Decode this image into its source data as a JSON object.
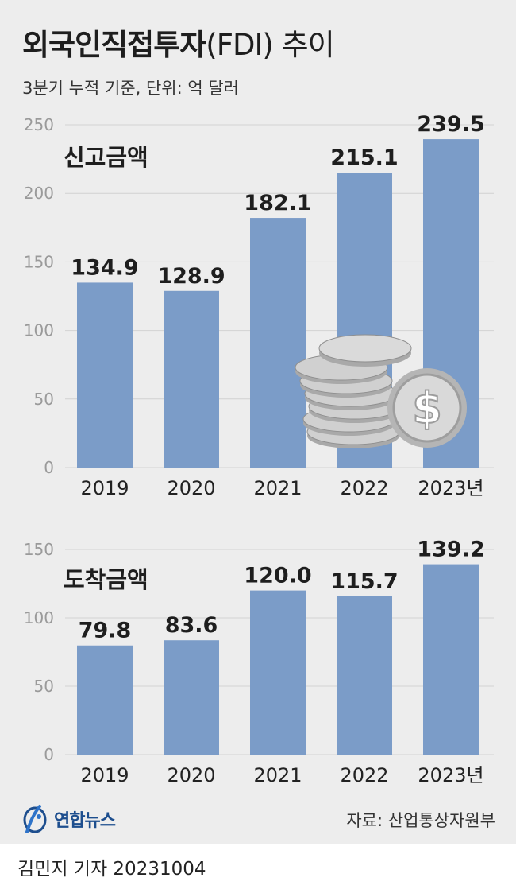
{
  "header": {
    "title_bold": "외국인직접투자",
    "title_light": "(FDI) 추이",
    "subtitle": "3분기 누적 기준, 단위: 억 달러"
  },
  "chart_data": [
    {
      "type": "bar",
      "title": "신고금액",
      "categories": [
        "2019",
        "2020",
        "2021",
        "2022",
        "2023년"
      ],
      "values": [
        134.9,
        128.9,
        182.1,
        215.1,
        239.5
      ],
      "value_labels": [
        "134.9",
        "128.9",
        "182.1",
        "215.1",
        "239.5"
      ],
      "yticks": [
        "0",
        "50",
        "100",
        "150",
        "200",
        "250"
      ],
      "ylim": [
        0,
        250
      ],
      "grid": true,
      "bar_color": "#7b9cc8"
    },
    {
      "type": "bar",
      "title": "도착금액",
      "categories": [
        "2019",
        "2020",
        "2021",
        "2022",
        "2023년"
      ],
      "values": [
        79.8,
        83.6,
        120.0,
        115.7,
        139.2
      ],
      "value_labels": [
        "79.8",
        "83.6",
        "120.0",
        "115.7",
        "139.2"
      ],
      "yticks": [
        "0",
        "50",
        "100",
        "150"
      ],
      "ylim": [
        0,
        150
      ],
      "grid": true,
      "bar_color": "#7b9cc8"
    }
  ],
  "footer": {
    "logo_text": "연합뉴스",
    "source": "자료: 산업통상자원부",
    "byline": "김민지 기자  20231004"
  },
  "colors": {
    "panel_bg": "#ededed",
    "bar": "#7b9cc8",
    "grid": "#d2d2d2",
    "logo_blue": "#1d4e8e",
    "coin": "#c8c8c8"
  }
}
